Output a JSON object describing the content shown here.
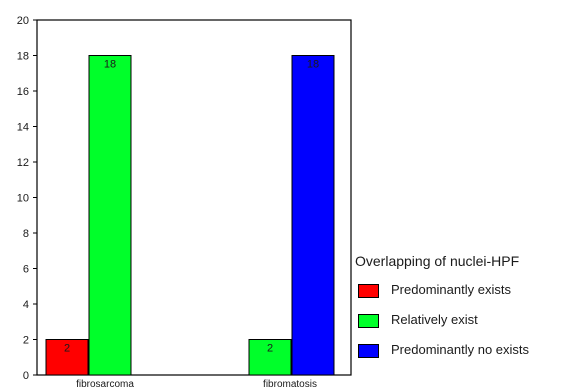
{
  "chart_data": {
    "type": "bar",
    "categories": [
      "fibrosarcoma",
      "fibromatosis"
    ],
    "series": [
      {
        "name": "Predominantly exists",
        "color": "#ff0000",
        "values": [
          2,
          0
        ]
      },
      {
        "name": "Relatively exist",
        "color": "#00ff2a",
        "values": [
          18,
          2
        ]
      },
      {
        "name": "Predominantly no exists",
        "color": "#0000ff",
        "values": [
          0,
          18
        ]
      }
    ],
    "data_labels": [
      [
        "2",
        null
      ],
      [
        "18",
        "2"
      ],
      [
        null,
        "18"
      ]
    ],
    "yticks": [
      0,
      2,
      4,
      6,
      8,
      10,
      12,
      14,
      16,
      18,
      20
    ],
    "ylim": [
      0,
      20
    ],
    "grid": false,
    "legend": {
      "title": "Overlapping of nuclei-HPF",
      "placement": "right"
    }
  }
}
